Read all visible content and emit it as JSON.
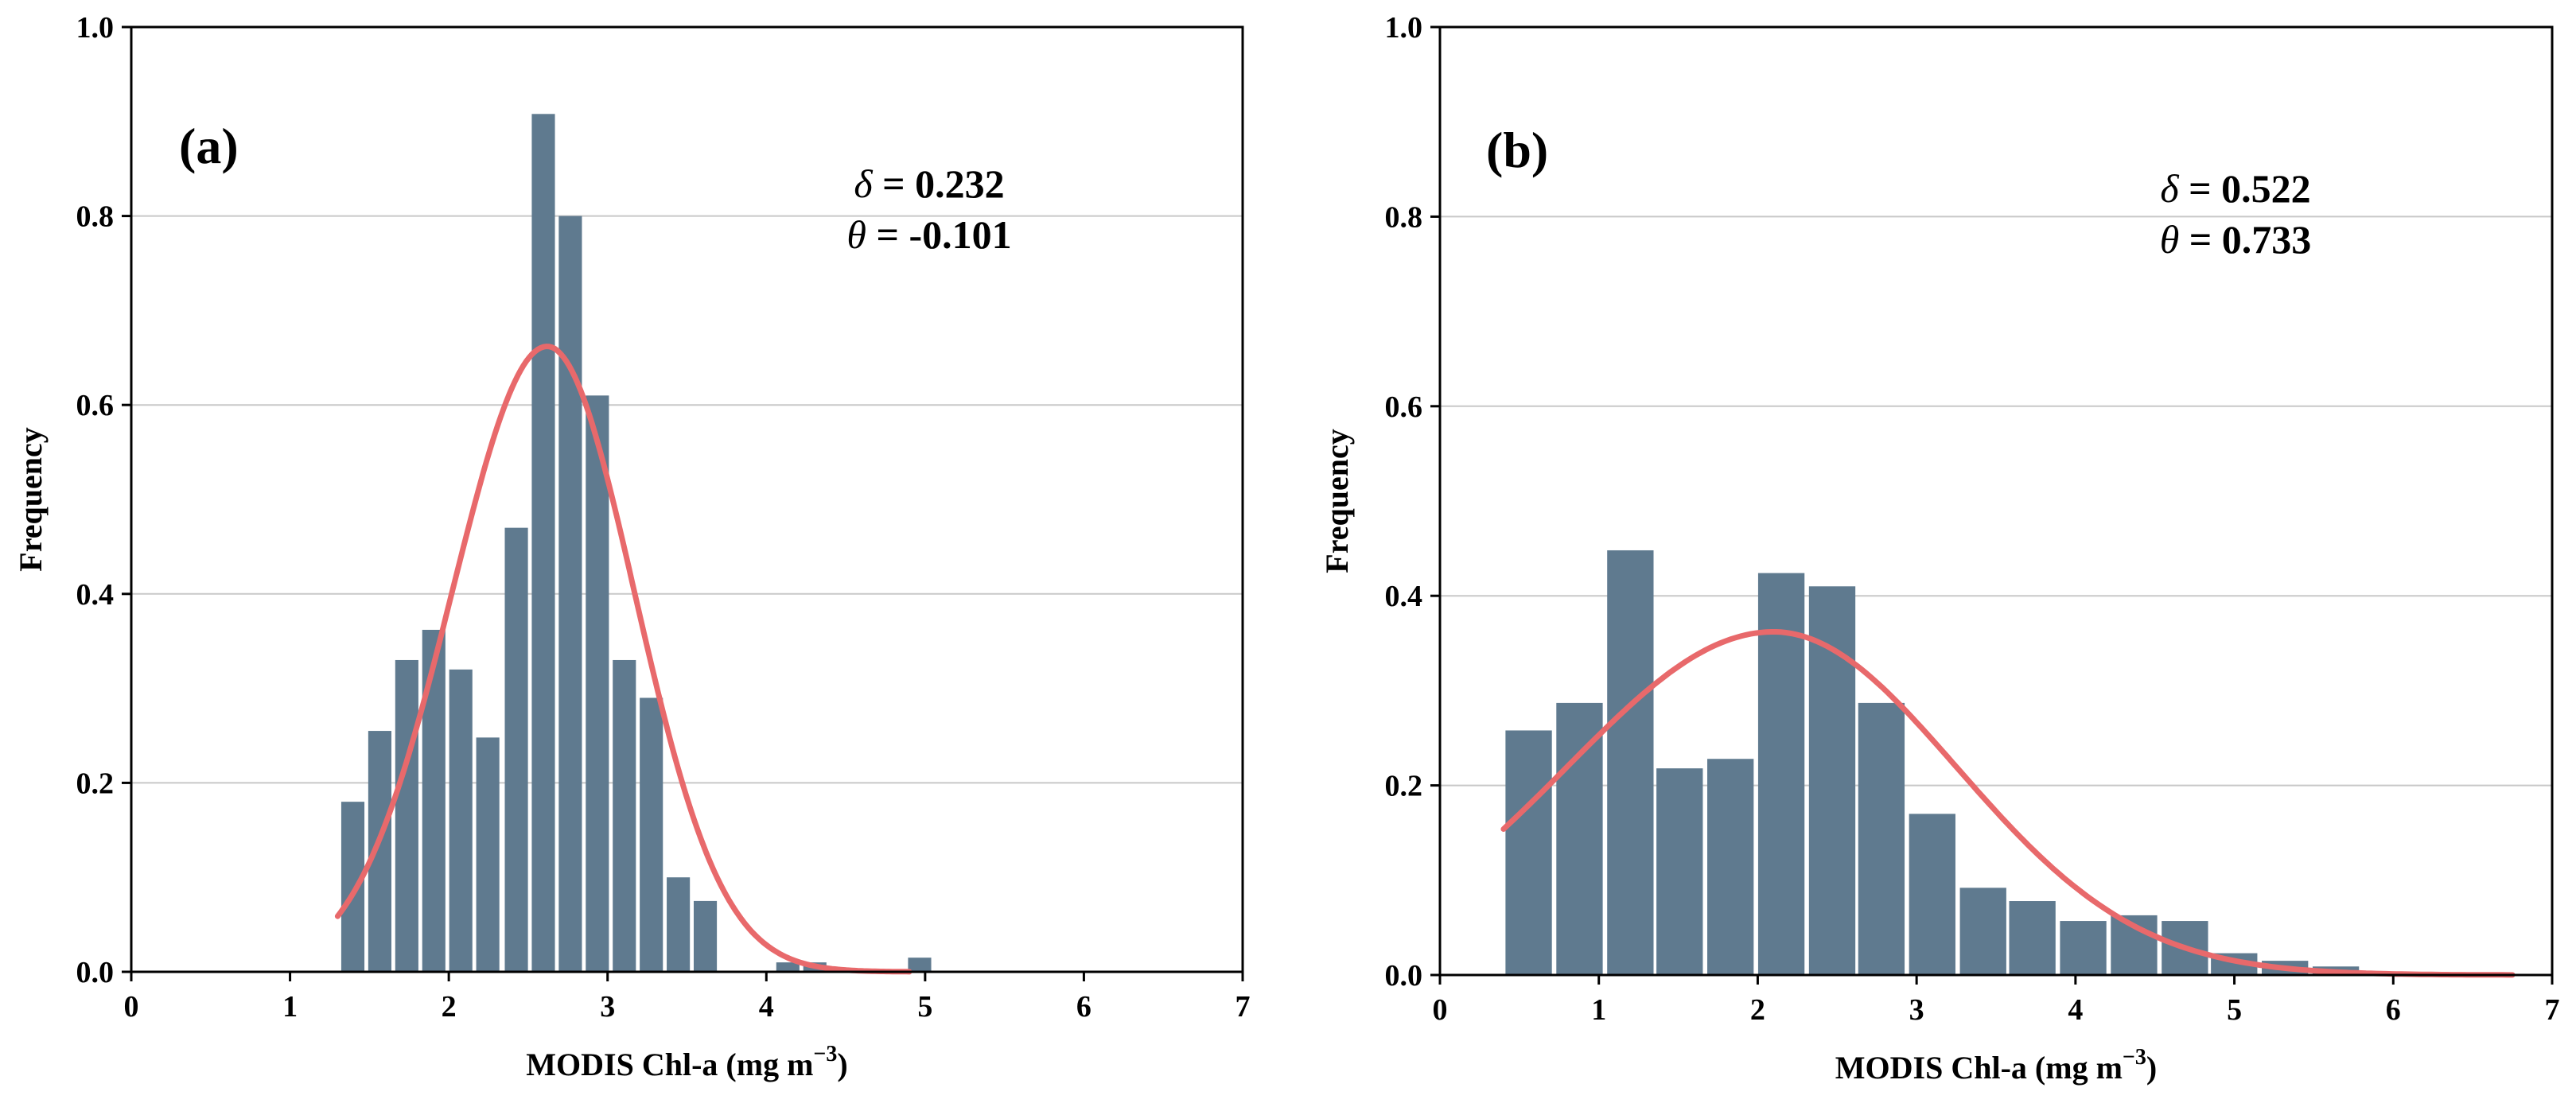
{
  "chart_data": [
    {
      "type": "bar",
      "panel_label": "(a)",
      "xlabel": "MODIS Chl-a (mg m",
      "xlabel_sup": "−3",
      "xlabel_close": ")",
      "ylabel": "Frequency",
      "xlim": [
        0,
        7
      ],
      "ylim": [
        0,
        1.0
      ],
      "xticks": [
        "0",
        "1",
        "2",
        "3",
        "4",
        "5",
        "6",
        "7"
      ],
      "yticks": [
        "0.0",
        "0.2",
        "0.4",
        "0.6",
        "0.8",
        "1.0"
      ],
      "grid": "horizontal",
      "bar_color": "#5f7a8f",
      "curve_color": "#e8696b",
      "bin_width": 0.171,
      "bars": [
        {
          "x": 1.31,
          "y": 0.18
        },
        {
          "x": 1.48,
          "y": 0.255
        },
        {
          "x": 1.65,
          "y": 0.33
        },
        {
          "x": 1.82,
          "y": 0.362
        },
        {
          "x": 1.99,
          "y": 0.32
        },
        {
          "x": 2.16,
          "y": 0.248
        },
        {
          "x": 2.34,
          "y": 0.47
        },
        {
          "x": 2.51,
          "y": 0.908
        },
        {
          "x": 2.68,
          "y": 0.8
        },
        {
          "x": 2.85,
          "y": 0.61
        },
        {
          "x": 3.02,
          "y": 0.33
        },
        {
          "x": 3.19,
          "y": 0.29
        },
        {
          "x": 3.36,
          "y": 0.1
        },
        {
          "x": 3.53,
          "y": 0.075
        },
        {
          "x": 3.71,
          "y": 0.0
        },
        {
          "x": 3.88,
          "y": 0.0
        },
        {
          "x": 4.05,
          "y": 0.01
        },
        {
          "x": 4.22,
          "y": 0.01
        },
        {
          "x": 4.39,
          "y": 0.0
        },
        {
          "x": 4.56,
          "y": 0.0
        },
        {
          "x": 4.73,
          "y": 0.0
        },
        {
          "x": 4.88,
          "y": 0.015
        }
      ],
      "curve": {
        "x_start": 1.3,
        "x_end": 4.9,
        "peak_x": 2.62,
        "peak_y": 0.662,
        "sigma_left": 0.6,
        "sigma_right": 0.55
      },
      "stats": {
        "delta_symbol": "δ",
        "delta_value": " = 0.232",
        "theta_symbol": "θ",
        "theta_value": " = -0.101"
      }
    },
    {
      "type": "bar",
      "panel_label": "(b)",
      "xlabel": "MODIS Chl-a (mg m",
      "xlabel_sup": "−3",
      "xlabel_close": ")",
      "ylabel": "Frequency",
      "xlim": [
        0,
        7
      ],
      "ylim": [
        0,
        1.0
      ],
      "xticks": [
        "0",
        "1",
        "2",
        "3",
        "4",
        "5",
        "6",
        "7"
      ],
      "yticks": [
        "0.0",
        "0.2",
        "0.4",
        "0.6",
        "0.8",
        "1.0"
      ],
      "grid": "horizontal",
      "bar_color": "#5f7a8f",
      "curve_color": "#e8696b",
      "bin_width": 0.317,
      "bars": [
        {
          "x": 0.4,
          "y": 0.258
        },
        {
          "x": 0.72,
          "y": 0.287
        },
        {
          "x": 1.04,
          "y": 0.448
        },
        {
          "x": 1.35,
          "y": 0.218
        },
        {
          "x": 1.67,
          "y": 0.228
        },
        {
          "x": 1.99,
          "y": 0.424
        },
        {
          "x": 2.31,
          "y": 0.41
        },
        {
          "x": 2.62,
          "y": 0.287
        },
        {
          "x": 2.94,
          "y": 0.17
        },
        {
          "x": 3.26,
          "y": 0.092
        },
        {
          "x": 3.57,
          "y": 0.078
        },
        {
          "x": 3.89,
          "y": 0.057
        },
        {
          "x": 4.21,
          "y": 0.063
        },
        {
          "x": 4.53,
          "y": 0.057
        },
        {
          "x": 4.84,
          "y": 0.023
        },
        {
          "x": 5.16,
          "y": 0.015
        },
        {
          "x": 5.48,
          "y": 0.009
        },
        {
          "x": 5.79,
          "y": 0.0
        },
        {
          "x": 6.11,
          "y": 0.0
        },
        {
          "x": 6.43,
          "y": 0.003
        }
      ],
      "curve": {
        "x_start": 0.4,
        "x_end": 6.75,
        "peak_x": 2.1,
        "peak_y": 0.362,
        "sigma_left": 1.3,
        "sigma_right": 1.15
      },
      "stats": {
        "delta_symbol": "δ",
        "delta_value": " = 0.522",
        "theta_symbol": "θ",
        "theta_value": " = 0.733"
      }
    }
  ]
}
